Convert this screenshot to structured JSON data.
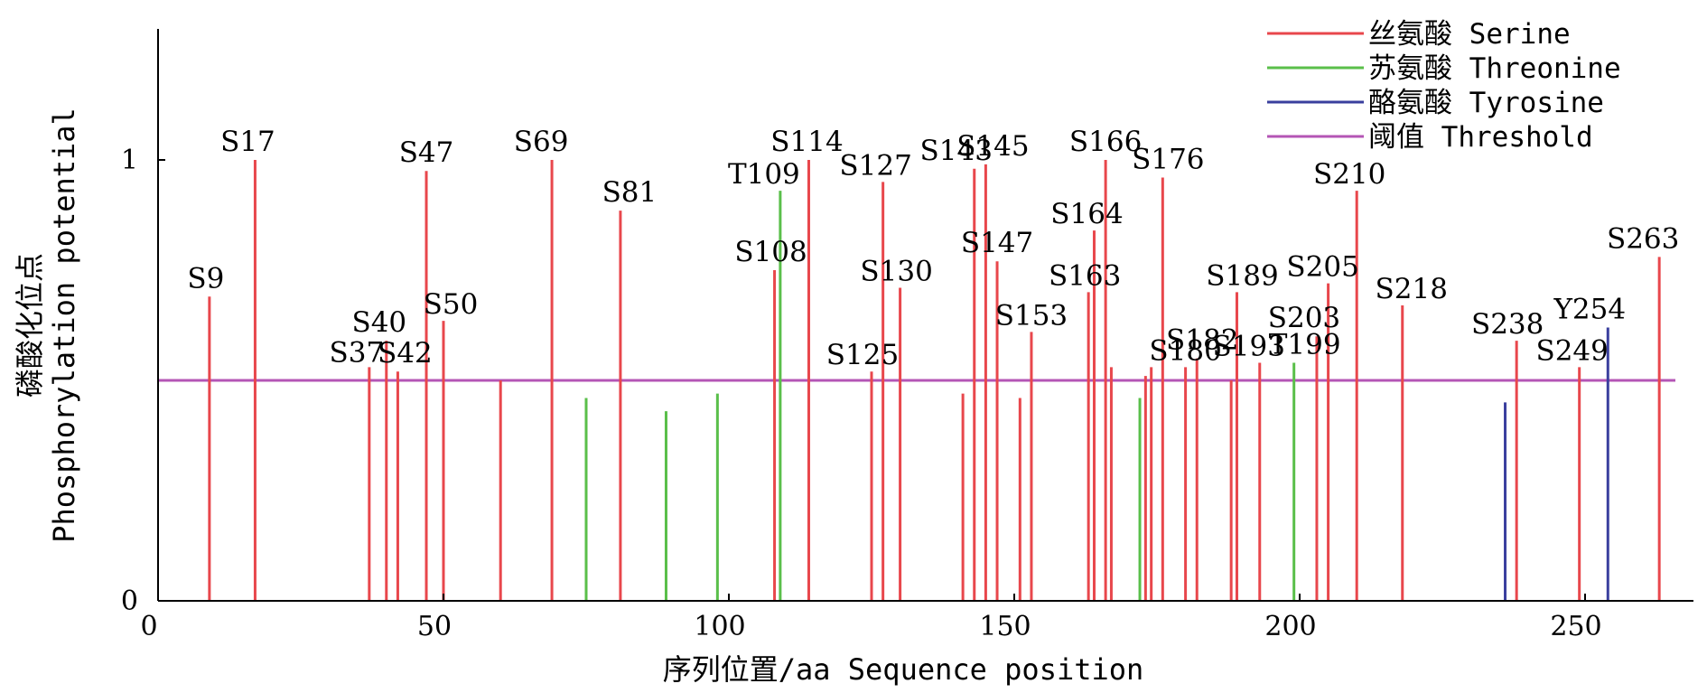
{
  "chart_data": {
    "type": "bar",
    "xlabel": "序列位置/aa Sequence position",
    "ylabel_lines": [
      "磷酸化位点",
      "Phosphorylation potential"
    ],
    "xlim": [
      0,
      270
    ],
    "ylim": [
      0,
      1.3
    ],
    "x_ticks": [
      0,
      50,
      100,
      150,
      200,
      250
    ],
    "y_ticks": [
      0,
      1
    ],
    "threshold": 0.5,
    "legend_position": "top-right",
    "series": [
      {
        "name": "丝氨酸 Serine",
        "color": "#e8474c",
        "points": [
          {
            "x": 9,
            "y": 0.69,
            "label": "S9"
          },
          {
            "x": 17,
            "y": 1.0,
            "label": "S17"
          },
          {
            "x": 37,
            "y": 0.53,
            "label": "S37"
          },
          {
            "x": 40,
            "y": 0.59,
            "label": "S40"
          },
          {
            "x": 42,
            "y": 0.52,
            "label": "S42"
          },
          {
            "x": 47,
            "y": 0.975,
            "label": "S47"
          },
          {
            "x": 50,
            "y": 0.635,
            "label": "S50"
          },
          {
            "x": 60,
            "y": 0.5,
            "label": ""
          },
          {
            "x": 69,
            "y": 1.0,
            "label": "S69"
          },
          {
            "x": 81,
            "y": 0.885,
            "label": "S81"
          },
          {
            "x": 108,
            "y": 0.75,
            "label": "S108"
          },
          {
            "x": 114,
            "y": 1.0,
            "label": "S114"
          },
          {
            "x": 125,
            "y": 0.52,
            "label": "S125"
          },
          {
            "x": 127,
            "y": 0.95,
            "label": "S127"
          },
          {
            "x": 130,
            "y": 0.71,
            "label": "S130"
          },
          {
            "x": 141,
            "y": 0.47,
            "label": ""
          },
          {
            "x": 143,
            "y": 0.98,
            "label": "S143"
          },
          {
            "x": 145,
            "y": 0.99,
            "label": "S145"
          },
          {
            "x": 147,
            "y": 0.77,
            "label": "S147"
          },
          {
            "x": 151,
            "y": 0.46,
            "label": ""
          },
          {
            "x": 153,
            "y": 0.61,
            "label": "S153"
          },
          {
            "x": 163,
            "y": 0.7,
            "label": "S163"
          },
          {
            "x": 164,
            "y": 0.84,
            "label": "S164"
          },
          {
            "x": 166,
            "y": 1.0,
            "label": "S166"
          },
          {
            "x": 167,
            "y": 0.53,
            "label": ""
          },
          {
            "x": 173,
            "y": 0.51,
            "label": ""
          },
          {
            "x": 174,
            "y": 0.53,
            "label": ""
          },
          {
            "x": 176,
            "y": 0.96,
            "label": "S176"
          },
          {
            "x": 180,
            "y": 0.53,
            "label": "S180"
          },
          {
            "x": 182,
            "y": 0.55,
            "label": "S182"
          },
          {
            "x": 188,
            "y": 0.5,
            "label": ""
          },
          {
            "x": 189,
            "y": 0.7,
            "label": "S189"
          },
          {
            "x": 193,
            "y": 0.54,
            "label": "S193"
          },
          {
            "x": 203,
            "y": 0.6,
            "label": "S203"
          },
          {
            "x": 205,
            "y": 0.72,
            "label": "S205"
          },
          {
            "x": 210,
            "y": 0.93,
            "label": "S210"
          },
          {
            "x": 218,
            "y": 0.67,
            "label": "S218"
          },
          {
            "x": 238,
            "y": 0.59,
            "label": "S238"
          },
          {
            "x": 249,
            "y": 0.53,
            "label": "S249"
          },
          {
            "x": 263,
            "y": 0.78,
            "label": "S263"
          }
        ]
      },
      {
        "name": "苏氨酸 Threonine",
        "color": "#5abf4a",
        "points": [
          {
            "x": 75,
            "y": 0.46,
            "label": ""
          },
          {
            "x": 89,
            "y": 0.43,
            "label": ""
          },
          {
            "x": 98,
            "y": 0.47,
            "label": ""
          },
          {
            "x": 109,
            "y": 0.93,
            "label": "T109"
          },
          {
            "x": 172,
            "y": 0.46,
            "label": ""
          },
          {
            "x": 199,
            "y": 0.54,
            "label": "T199"
          }
        ]
      },
      {
        "name": "酪氨酸 Tyrosine",
        "color": "#3a3f9e",
        "points": [
          {
            "x": 236,
            "y": 0.45,
            "label": ""
          },
          {
            "x": 254,
            "y": 0.62,
            "label": "Y254"
          }
        ]
      },
      {
        "name": "阈值 Threshold",
        "color": "#b455b5",
        "points": []
      }
    ]
  }
}
